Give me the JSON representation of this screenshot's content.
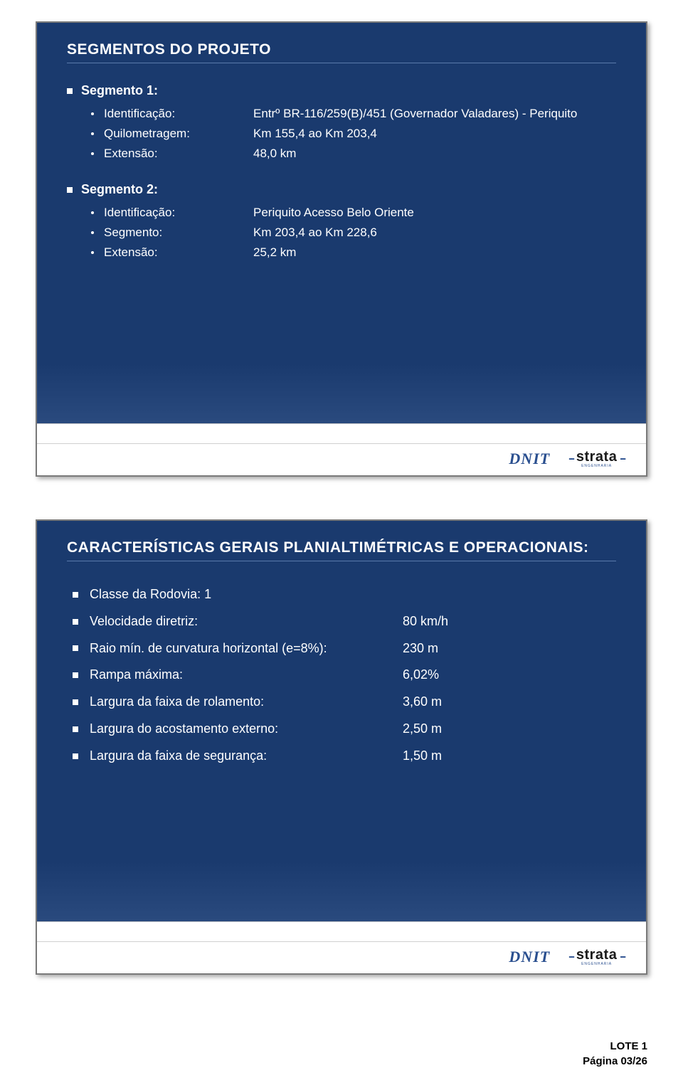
{
  "colors": {
    "slide_bg": "#1a3a6e",
    "heading_underline": "#5a7aab",
    "text": "#ffffff",
    "dnit": "#2a4f8f",
    "strata_text": "#1a1a1a"
  },
  "slide1": {
    "heading": "SEGMENTOS DO PROJETO",
    "seg1": {
      "title": "Segmento 1:",
      "rows": {
        "ident_label": "Identificação:",
        "ident_val": "Entrº BR-116/259(B)/451 (Governador Valadares) - Periquito",
        "quilo_label": "Quilometragem:",
        "quilo_val": "Km 155,4 ao Km 203,4",
        "ext_label": "Extensão:",
        "ext_val": "48,0 km"
      }
    },
    "seg2": {
      "title": "Segmento 2:",
      "rows": {
        "ident_label": "Identificação:",
        "ident_val": "Periquito Acesso Belo Oriente",
        "segm_label": "Segmento:",
        "segm_val": "Km 203,4 ao Km 228,6",
        "ext_label": "Extensão:",
        "ext_val": "25,2 km"
      }
    }
  },
  "slide2": {
    "heading": "CARACTERÍSTICAS GERAIS PLANIALTIMÉTRICAS E OPERACIONAIS:",
    "rows": {
      "classe": "Classe da Rodovia: 1",
      "vel_label": "Velocidade diretriz:",
      "vel_val": "80 km/h",
      "raio_label": "Raio mín. de curvatura horizontal (e=8%):",
      "raio_val": "230 m",
      "rampa_label": "Rampa máxima:",
      "rampa_val": "6,02%",
      "larg_rol_label": "Largura da faixa de rolamento:",
      "larg_rol_val": "3,60 m",
      "larg_aco_label": "Largura do acostamento externo:",
      "larg_aco_val": "2,50 m",
      "larg_seg_label": "Largura da faixa de segurança:",
      "larg_seg_val": "1,50 m"
    }
  },
  "logos": {
    "dnit": "DNIT",
    "strata": "strata",
    "strata_sub": "ENGENHARIA",
    "dash": "--"
  },
  "footer": {
    "lote": "LOTE 1",
    "pagina": "Página 03/26"
  }
}
